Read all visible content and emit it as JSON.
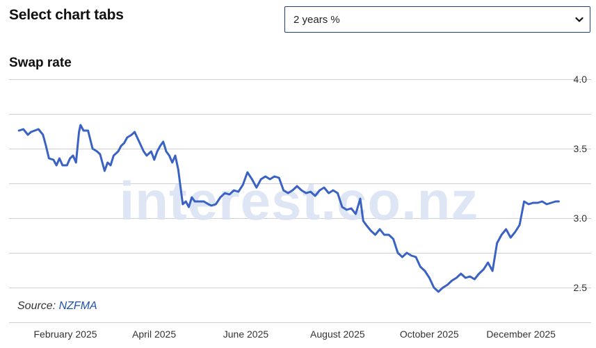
{
  "header": {
    "title": "Select chart tabs",
    "select_value": "2 years %"
  },
  "chart_title": "Swap rate",
  "watermark": "interest.co.nz",
  "source": {
    "label": "Source:",
    "link": "NZFMA"
  },
  "colors": {
    "line": "#3a62c4",
    "grid": "#cfcfcf",
    "watermark": "#dbe4f5",
    "select_border": "#1f3c88"
  },
  "chart_data": {
    "type": "line",
    "title": "Swap rate",
    "xlabel": "",
    "ylabel": "",
    "ylim": [
      2.25,
      4.0
    ],
    "yticks": [
      2.5,
      3.0,
      3.5,
      4.0
    ],
    "ytick_labels": [
      "2.5",
      "3.0",
      "3.5",
      "4.0"
    ],
    "x_tick_labels": [
      "February 2025",
      "April 2025",
      "June 2025",
      "August 2025",
      "October 2025",
      "December 2025"
    ],
    "x_tick_dates": [
      "2025-02-01",
      "2025-04-01",
      "2025-06-01",
      "2025-08-01",
      "2025-10-01",
      "2025-12-01"
    ],
    "x_range": [
      "2025-01-01",
      "2025-12-31"
    ],
    "grid": true,
    "series": [
      {
        "x": [
          "2025-01-02",
          "2025-01-05",
          "2025-01-08",
          "2025-01-10",
          "2025-01-15",
          "2025-01-18",
          "2025-01-20",
          "2025-01-22",
          "2025-01-25",
          "2025-01-27",
          "2025-01-29",
          "2025-01-31",
          "2025-02-03",
          "2025-02-05",
          "2025-02-07",
          "2025-02-09",
          "2025-02-11",
          "2025-02-12",
          "2025-02-14",
          "2025-02-17",
          "2025-02-20",
          "2025-02-23",
          "2025-02-25",
          "2025-02-28",
          "2025-03-02",
          "2025-03-04",
          "2025-03-06",
          "2025-03-09",
          "2025-03-11",
          "2025-03-13",
          "2025-03-15",
          "2025-03-18",
          "2025-03-20",
          "2025-03-23",
          "2025-03-26",
          "2025-03-28",
          "2025-03-31",
          "2025-04-02",
          "2025-04-04",
          "2025-04-06",
          "2025-04-08",
          "2025-04-10",
          "2025-04-12",
          "2025-04-14",
          "2025-04-16",
          "2025-04-18",
          "2025-04-21",
          "2025-04-23",
          "2025-04-25",
          "2025-04-27",
          "2025-04-29",
          "2025-05-02",
          "2025-05-05",
          "2025-05-08",
          "2025-05-10",
          "2025-05-13",
          "2025-05-16",
          "2025-05-19",
          "2025-05-22",
          "2025-05-25",
          "2025-05-28",
          "2025-05-31",
          "2025-06-03",
          "2025-06-06",
          "2025-06-09",
          "2025-06-12",
          "2025-06-15",
          "2025-06-18",
          "2025-06-21",
          "2025-06-24",
          "2025-06-27",
          "2025-06-30",
          "2025-07-03",
          "2025-07-06",
          "2025-07-09",
          "2025-07-12",
          "2025-07-15",
          "2025-07-18",
          "2025-07-21",
          "2025-07-24",
          "2025-07-27",
          "2025-07-30",
          "2025-08-02",
          "2025-08-05",
          "2025-08-08",
          "2025-08-11",
          "2025-08-14",
          "2025-08-17",
          "2025-08-19",
          "2025-08-21",
          "2025-08-24",
          "2025-08-27",
          "2025-08-30",
          "2025-09-02",
          "2025-09-05",
          "2025-09-08",
          "2025-09-11",
          "2025-09-14",
          "2025-09-17",
          "2025-09-20",
          "2025-09-23",
          "2025-09-26",
          "2025-09-29",
          "2025-10-02",
          "2025-10-05",
          "2025-10-08",
          "2025-10-11",
          "2025-10-14",
          "2025-10-17",
          "2025-10-20",
          "2025-10-23",
          "2025-10-26",
          "2025-10-29",
          "2025-11-01",
          "2025-11-04",
          "2025-11-07",
          "2025-11-10",
          "2025-11-13",
          "2025-11-16",
          "2025-11-19",
          "2025-11-22",
          "2025-11-25",
          "2025-11-28",
          "2025-12-01",
          "2025-12-04",
          "2025-12-07",
          "2025-12-10",
          "2025-12-13",
          "2025-12-16",
          "2025-12-19",
          "2025-12-22",
          "2025-12-25",
          "2025-12-27"
        ],
        "values": [
          3.63,
          3.64,
          3.6,
          3.62,
          3.64,
          3.6,
          3.52,
          3.43,
          3.42,
          3.38,
          3.43,
          3.38,
          3.38,
          3.43,
          3.45,
          3.4,
          3.62,
          3.67,
          3.63,
          3.63,
          3.5,
          3.48,
          3.46,
          3.34,
          3.4,
          3.38,
          3.45,
          3.48,
          3.52,
          3.54,
          3.58,
          3.6,
          3.62,
          3.55,
          3.48,
          3.45,
          3.48,
          3.42,
          3.48,
          3.52,
          3.55,
          3.48,
          3.45,
          3.4,
          3.45,
          3.35,
          3.1,
          3.12,
          3.08,
          3.15,
          3.12,
          3.12,
          3.12,
          3.1,
          3.09,
          3.1,
          3.15,
          3.18,
          3.17,
          3.2,
          3.19,
          3.24,
          3.33,
          3.28,
          3.22,
          3.28,
          3.3,
          3.28,
          3.3,
          3.29,
          3.2,
          3.18,
          3.2,
          3.23,
          3.2,
          3.18,
          3.19,
          3.16,
          3.2,
          3.22,
          3.18,
          3.2,
          3.18,
          3.08,
          3.06,
          3.07,
          3.03,
          3.14,
          2.98,
          2.95,
          2.91,
          2.88,
          2.92,
          2.88,
          2.88,
          2.85,
          2.75,
          2.72,
          2.75,
          2.73,
          2.72,
          2.65,
          2.62,
          2.57,
          2.5,
          2.47,
          2.5,
          2.52,
          2.55,
          2.57,
          2.6,
          2.57,
          2.58,
          2.56,
          2.6,
          2.63,
          2.68,
          2.62,
          2.82,
          2.88,
          2.92,
          2.86,
          2.9,
          2.95,
          3.12,
          3.1,
          3.11,
          3.11,
          3.12,
          3.1,
          3.11,
          3.12,
          3.12
        ]
      }
    ]
  }
}
